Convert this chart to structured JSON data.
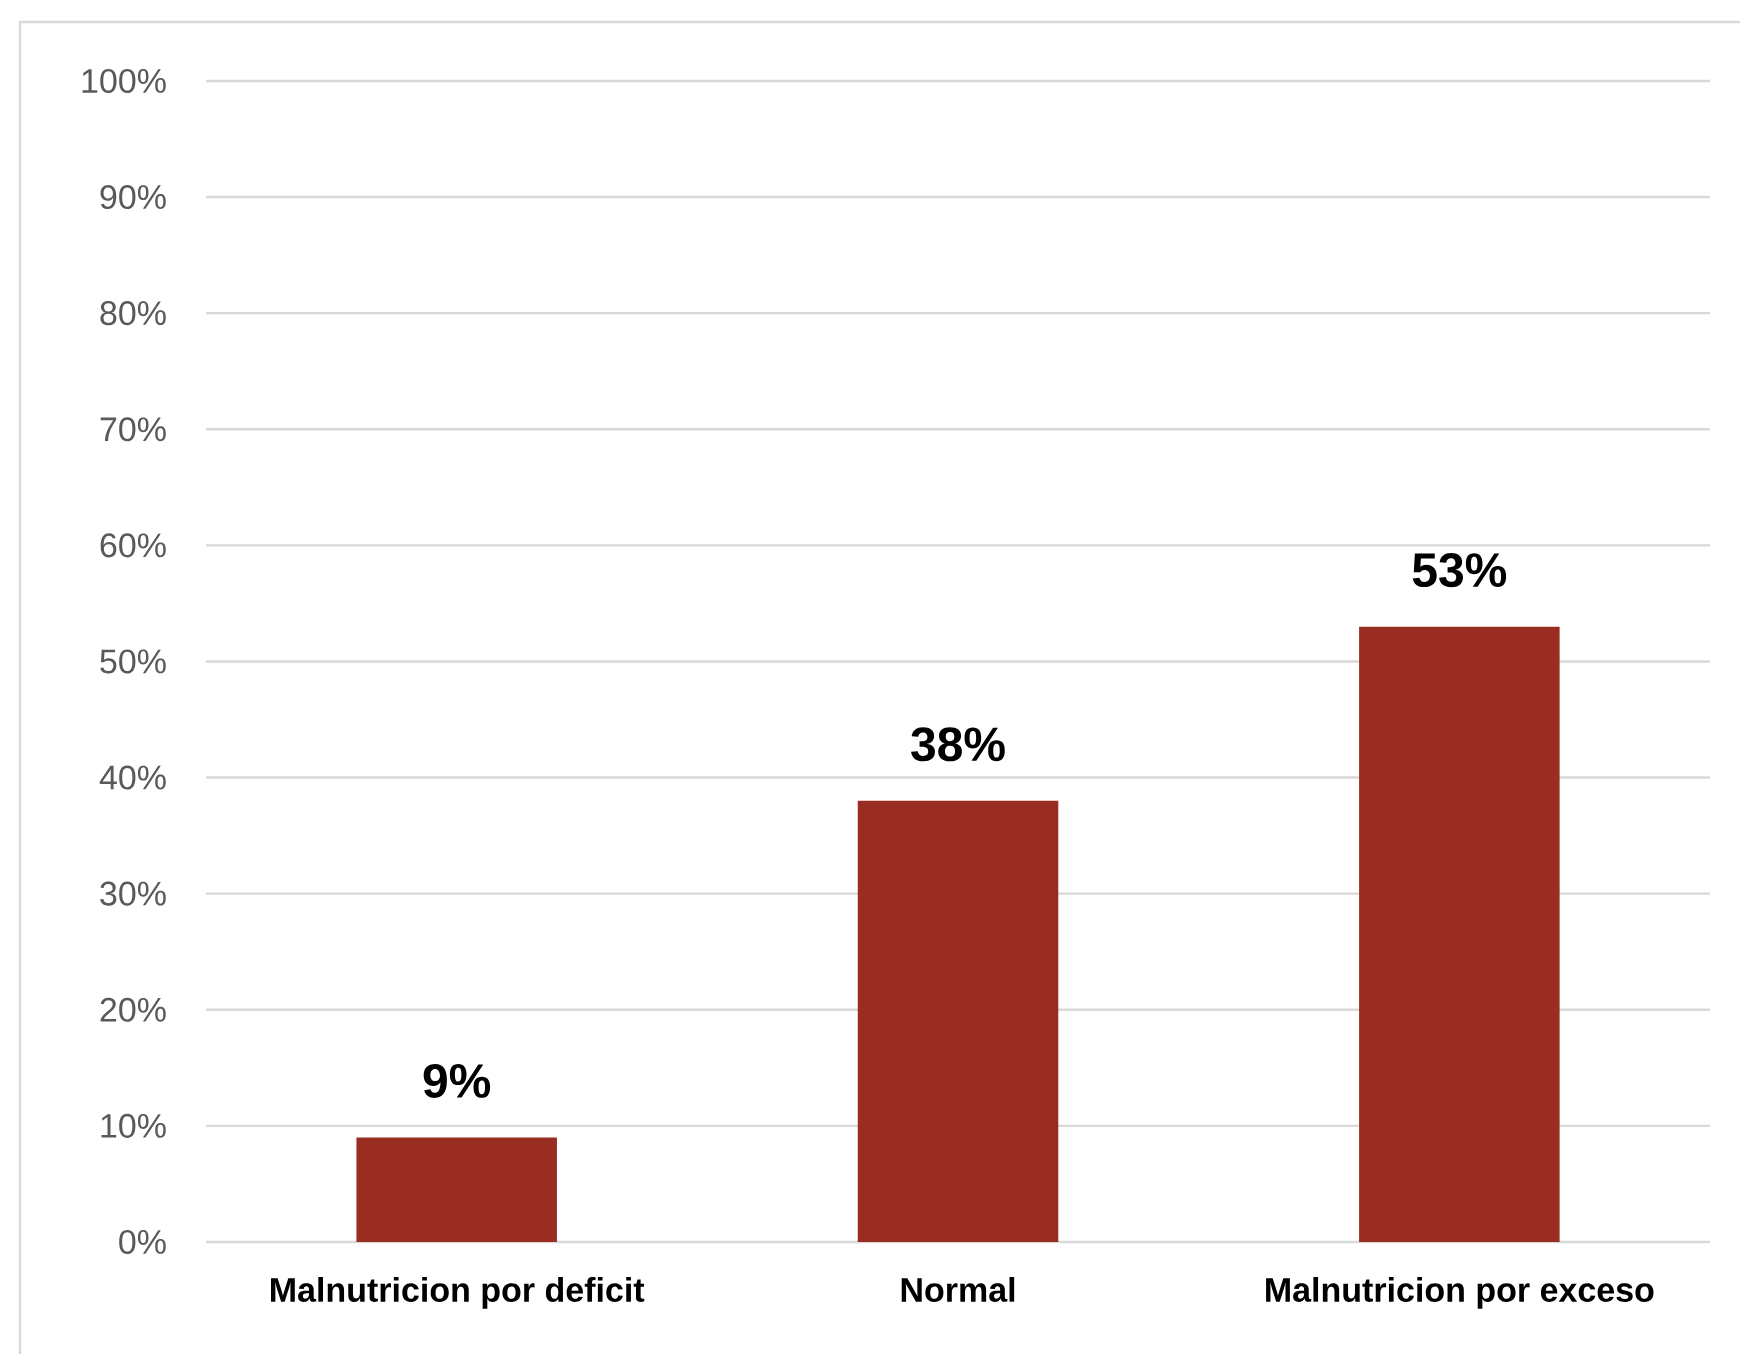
{
  "chart_data": {
    "type": "bar",
    "categories": [
      "Malnutricion por deficit",
      "Normal",
      "Malnutricion por exceso"
    ],
    "values": [
      9,
      38,
      53
    ],
    "value_labels": [
      "9%",
      "38%",
      "53%"
    ],
    "color": "#9a2d21",
    "ylim": [
      0,
      100
    ],
    "yticks": [
      {
        "value": 0,
        "label": "0%"
      },
      {
        "value": 10,
        "label": "10%"
      },
      {
        "value": 20,
        "label": "20%"
      },
      {
        "value": 30,
        "label": "30%"
      },
      {
        "value": 40,
        "label": "40%"
      },
      {
        "value": 50,
        "label": "50%"
      },
      {
        "value": 60,
        "label": "60%"
      },
      {
        "value": 70,
        "label": "70%"
      },
      {
        "value": 80,
        "label": "80%"
      },
      {
        "value": 90,
        "label": "90%"
      },
      {
        "value": 100,
        "label": "100%"
      }
    ],
    "grid": "y"
  }
}
